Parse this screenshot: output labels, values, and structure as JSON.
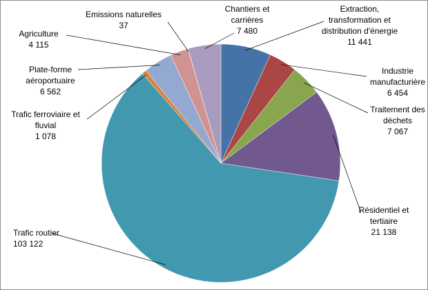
{
  "chart_data": {
    "type": "pie",
    "categories": [
      "Extraction, transformation et distribution d'énergie",
      "Industrie manufacturière",
      "Traitement des déchets",
      "Résidentiel et tertiaire",
      "Trafic routier",
      "Trafic ferroviaire et fluvial",
      "Plate-forme aéroportuaire",
      "Agriculture",
      "Emissions naturelles",
      "Chantiers et carrières"
    ],
    "values": [
      11441,
      6454,
      7067,
      21138,
      103122,
      1078,
      6562,
      4115,
      37,
      7480
    ],
    "value_labels": [
      "11 441",
      "6 454",
      "7 067",
      "21 138",
      "103 122",
      "1 078",
      "6 562",
      "4 115",
      "37",
      "7 480"
    ],
    "colors": [
      "#4572a7",
      "#aa4643",
      "#89a54e",
      "#71588f",
      "#4198af",
      "#db843d",
      "#93a9cf",
      "#d19392",
      "#b9cd96",
      "#a99bbd"
    ]
  }
}
